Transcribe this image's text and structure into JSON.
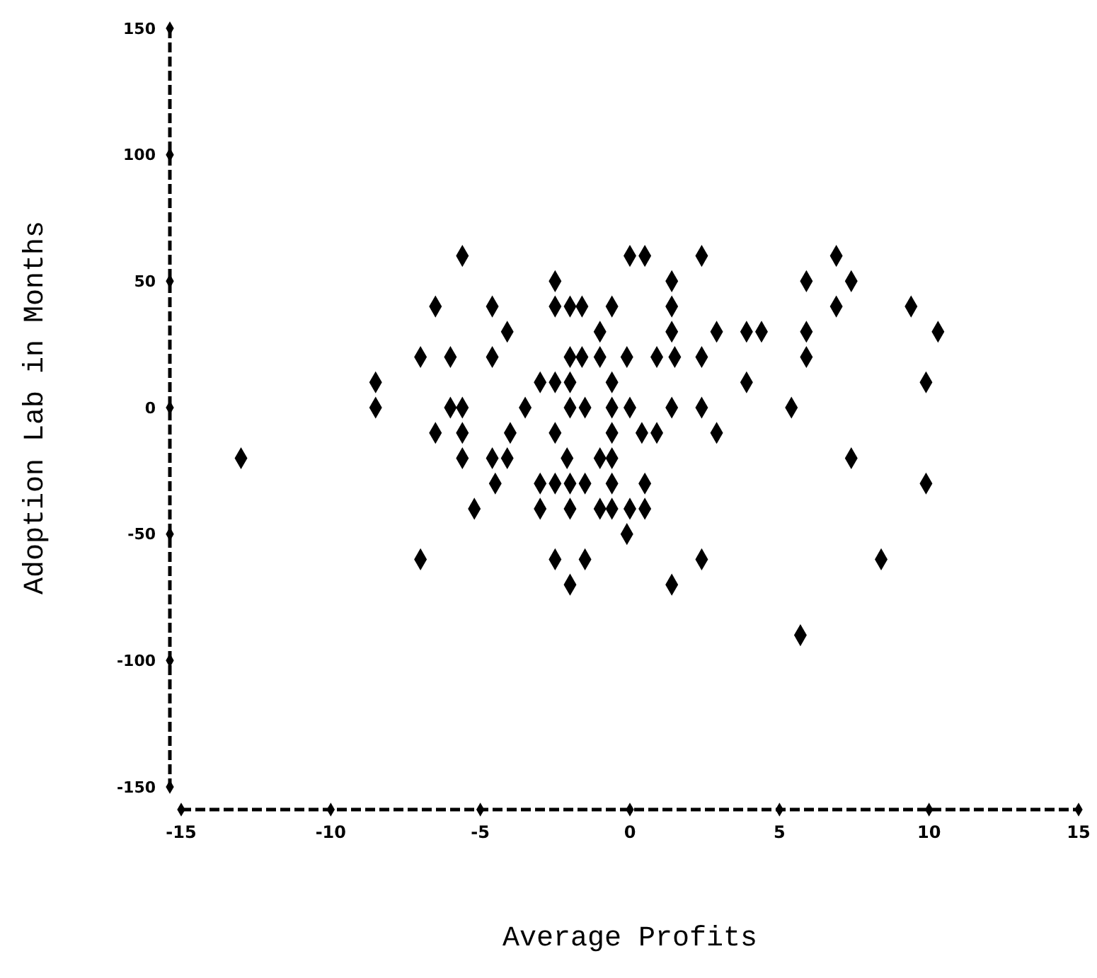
{
  "chart_data": {
    "type": "scatter",
    "xlabel": "Average Profits",
    "ylabel": "Adoption Lab in Months",
    "marker": "diamond",
    "xlim": [
      -15,
      15
    ],
    "ylim": [
      -150,
      150
    ],
    "xticks": [
      -15,
      -10,
      -5,
      0,
      5,
      10,
      15
    ],
    "yticks": [
      -150,
      -100,
      -50,
      0,
      50,
      100,
      150
    ],
    "series": [
      {
        "color": "#000000",
        "x": [
          -5.6,
          -6.5,
          -7.0,
          -6.0,
          -8.5,
          -8.5,
          -6.0,
          -5.6,
          -6.5,
          -5.6,
          -13.0,
          -5.6,
          -5.2,
          -7.0,
          0.0,
          0.5,
          2.4,
          -2.5,
          1.4,
          -4.6,
          -2.5,
          -2.0,
          -1.6,
          -0.6,
          1.4,
          -4.1,
          -1.0,
          1.4,
          2.9,
          3.9,
          4.4,
          -4.6,
          -2.0,
          -1.6,
          -1.0,
          -0.1,
          0.9,
          1.5,
          2.4,
          -3.0,
          -2.5,
          -2.0,
          -0.6,
          3.9,
          -3.5,
          -2.0,
          -1.5,
          -0.6,
          0.0,
          1.4,
          2.4,
          -4.0,
          -2.5,
          -0.6,
          0.4,
          0.9,
          2.9,
          -4.6,
          -4.1,
          -2.1,
          -1.0,
          -0.6,
          -4.5,
          -3.0,
          -2.5,
          -2.0,
          -1.5,
          -0.6,
          0.5,
          -3.0,
          -2.0,
          -1.0,
          -0.6,
          0.0,
          0.5,
          -0.1,
          -2.5,
          -1.5,
          2.4,
          -2.0,
          1.4,
          6.9,
          5.9,
          7.4,
          6.9,
          9.4,
          5.9,
          10.3,
          5.9,
          9.9,
          5.4,
          7.4,
          9.9,
          8.4,
          5.7
        ],
        "values": [
          60,
          40,
          20,
          20,
          10,
          0,
          0,
          0,
          -10,
          -10,
          -20,
          -20,
          -40,
          -60,
          60,
          60,
          60,
          50,
          50,
          40,
          40,
          40,
          40,
          40,
          40,
          30,
          30,
          30,
          30,
          30,
          30,
          20,
          20,
          20,
          20,
          20,
          20,
          20,
          20,
          10,
          10,
          10,
          10,
          10,
          0,
          0,
          0,
          0,
          0,
          0,
          0,
          -10,
          -10,
          -10,
          -10,
          -10,
          -10,
          -20,
          -20,
          -20,
          -20,
          -20,
          -30,
          -30,
          -30,
          -30,
          -30,
          -30,
          -30,
          -40,
          -40,
          -40,
          -40,
          -40,
          -40,
          -50,
          -60,
          -60,
          -60,
          -70,
          -70,
          60,
          50,
          50,
          40,
          40,
          30,
          30,
          20,
          10,
          0,
          -20,
          -30,
          -60,
          -90
        ]
      }
    ]
  }
}
